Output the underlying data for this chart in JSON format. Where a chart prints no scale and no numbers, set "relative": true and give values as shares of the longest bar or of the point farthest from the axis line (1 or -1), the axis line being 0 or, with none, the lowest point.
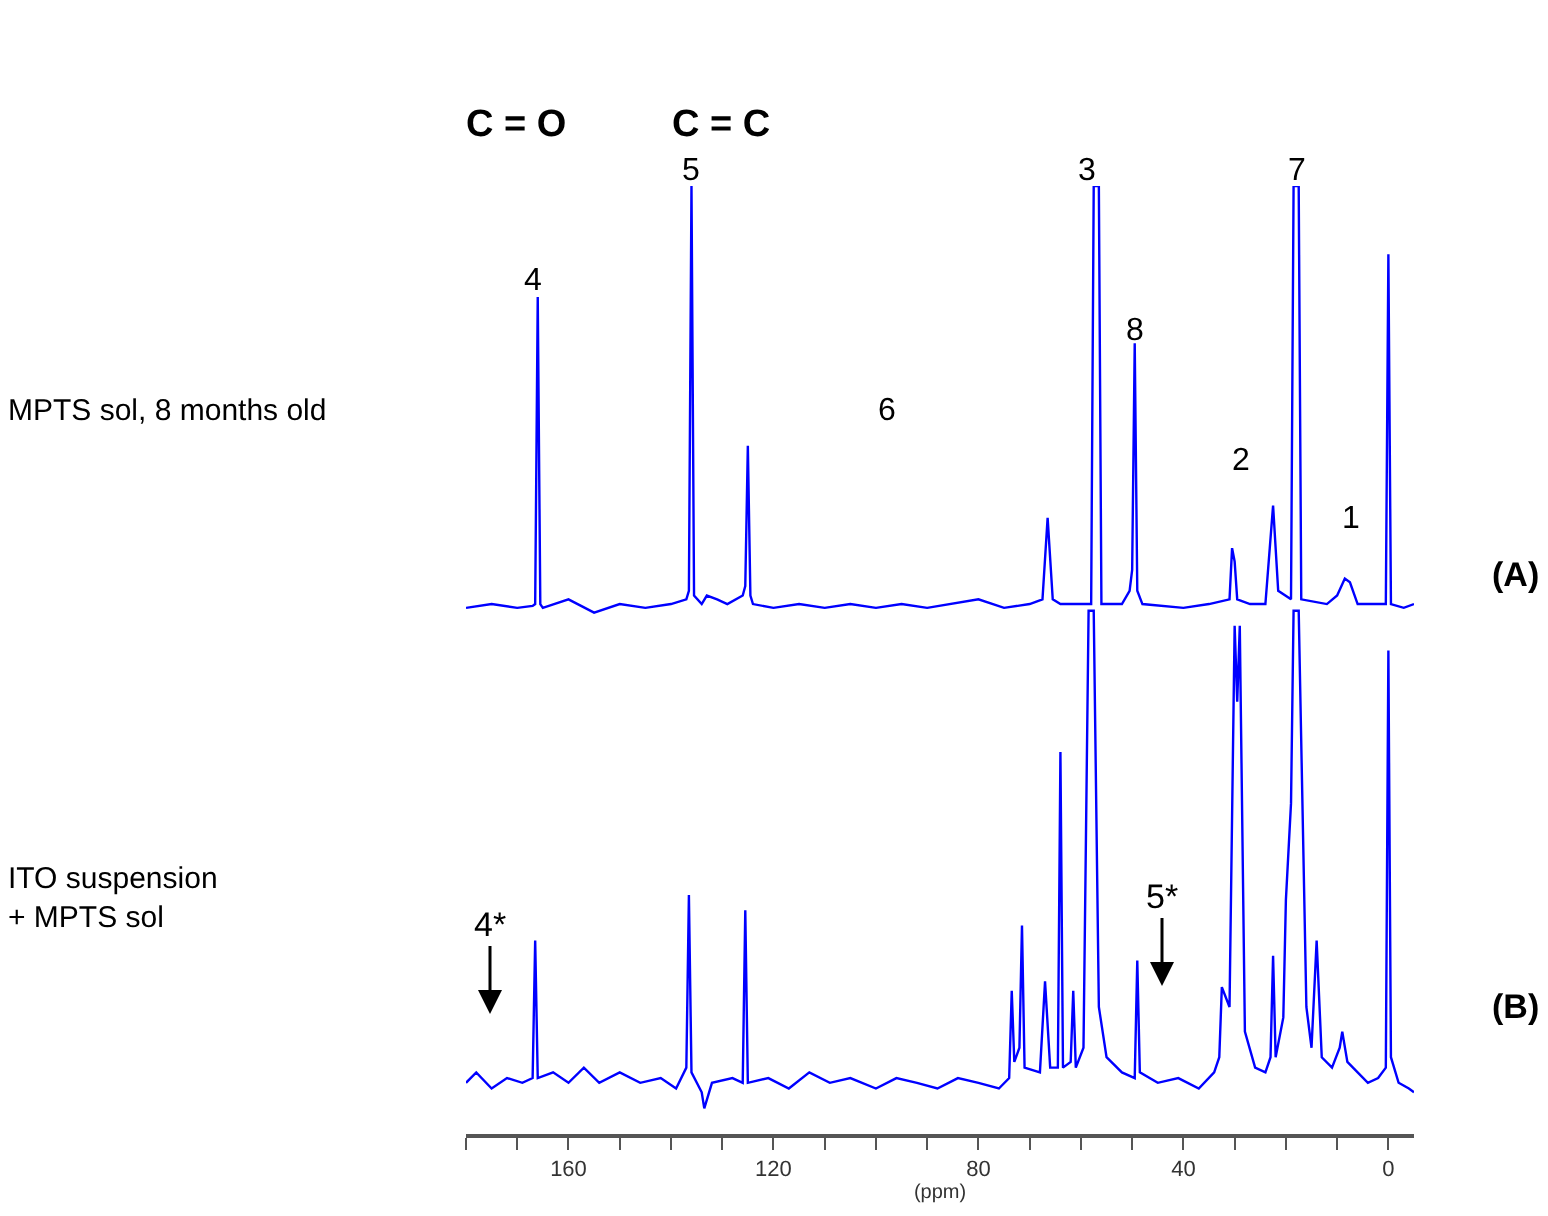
{
  "chart_data": {
    "type": "line",
    "relative": true,
    "xlim": [
      180,
      -5
    ],
    "xlabel": "(ppm)",
    "tick_labels": "x",
    "xticks": [
      {
        "value": 180,
        "label": null
      },
      {
        "value": 170,
        "label": null
      },
      160,
      {
        "value": 150,
        "label": null
      },
      {
        "value": 140,
        "label": null
      },
      {
        "value": 130,
        "label": null
      },
      120,
      {
        "value": 110,
        "label": null
      },
      {
        "value": 100,
        "label": null
      },
      {
        "value": 90,
        "label": null
      },
      80,
      {
        "value": 70,
        "label": null
      },
      {
        "value": 60,
        "label": null
      },
      {
        "value": 50,
        "label": null
      },
      40,
      {
        "value": 30,
        "label": null
      },
      {
        "value": 20,
        "label": null
      },
      {
        "value": 10,
        "label": null
      },
      0
    ],
    "annotations": [
      "C = O",
      "C = C",
      "4",
      "5",
      "6",
      "3",
      "8",
      "2",
      "7",
      "1",
      "MPTS sol, 8 months old",
      "(A)",
      "4*",
      "5*",
      "ITO suspension\n+ MPTS sol",
      "(B)"
    ],
    "series": [
      {
        "color": "#0000ff",
        "x": [
          180,
          175,
          170,
          167,
          166.5,
          166,
          165.5,
          165,
          160,
          155,
          150,
          145,
          140,
          137,
          136.5,
          136,
          135.5,
          134,
          133,
          131,
          129,
          126,
          125.5,
          125,
          124.5,
          124,
          120,
          115,
          110,
          105,
          100,
          95,
          90,
          80,
          75,
          70,
          67.5,
          66.5,
          65.5,
          64,
          58,
          57.5,
          56.5,
          56,
          52,
          50.5,
          50,
          49.5,
          49,
          48,
          40,
          35,
          31,
          30.5,
          30,
          29.5,
          27,
          24,
          22.5,
          21.5,
          19,
          18.5,
          17.5,
          17,
          12,
          10,
          8.5,
          7.5,
          6,
          3,
          0.5,
          0,
          -0.5,
          -3,
          -5
        ],
        "values": [
          0.555,
          0.559,
          0.555,
          0.557,
          0.559,
          0.883,
          0.559,
          0.555,
          0.564,
          0.55,
          0.559,
          0.555,
          0.559,
          0.564,
          0.573,
          1.0,
          0.568,
          0.559,
          0.568,
          0.564,
          0.559,
          0.568,
          0.578,
          0.726,
          0.568,
          0.559,
          0.555,
          0.559,
          0.555,
          0.559,
          0.555,
          0.559,
          0.555,
          0.564,
          0.555,
          0.559,
          0.564,
          0.65,
          0.564,
          0.559,
          0.559,
          1.0,
          1.0,
          0.559,
          0.559,
          0.573,
          0.595,
          0.834,
          0.573,
          0.559,
          0.555,
          0.559,
          0.564,
          0.618,
          0.604,
          0.564,
          0.559,
          0.559,
          0.663,
          0.573,
          0.564,
          1.0,
          1.0,
          0.564,
          0.559,
          0.568,
          0.586,
          0.582,
          0.559,
          0.559,
          0.559,
          0.928,
          0.559,
          0.555,
          0.559
        ]
      },
      {
        "color": "#0000ff",
        "x": [
          180,
          178,
          175,
          172,
          169,
          167,
          166.5,
          166,
          163,
          160,
          157,
          154,
          150,
          146,
          142,
          139,
          137,
          136.5,
          136,
          134,
          133.5,
          132,
          128,
          126,
          125.5,
          125,
          121,
          117,
          113,
          109,
          105,
          100,
          96,
          92,
          88,
          84,
          80,
          76,
          74,
          73.5,
          73,
          72,
          71.5,
          71,
          68,
          67,
          66,
          64.5,
          64,
          63.5,
          62,
          61.5,
          61,
          59.5,
          58.5,
          57.5,
          56.5,
          55,
          52,
          49.5,
          49,
          48.5,
          45,
          41,
          37,
          34,
          33,
          32.5,
          31,
          30,
          29.5,
          29,
          28,
          26,
          24,
          23,
          22.5,
          22,
          20.5,
          20,
          19,
          18.5,
          17.5,
          16,
          15,
          14,
          13,
          11,
          9.5,
          9,
          8,
          6,
          4,
          2,
          0.5,
          0,
          -0.5,
          -2,
          -4,
          -5
        ],
        "values": [
          0.054,
          0.065,
          0.048,
          0.059,
          0.054,
          0.059,
          0.204,
          0.059,
          0.065,
          0.054,
          0.07,
          0.054,
          0.065,
          0.054,
          0.059,
          0.048,
          0.07,
          0.252,
          0.065,
          0.044,
          0.027,
          0.054,
          0.059,
          0.054,
          0.236,
          0.054,
          0.059,
          0.048,
          0.065,
          0.054,
          0.059,
          0.048,
          0.059,
          0.054,
          0.048,
          0.059,
          0.054,
          0.048,
          0.059,
          0.151,
          0.076,
          0.091,
          0.22,
          0.07,
          0.065,
          0.161,
          0.07,
          0.07,
          0.403,
          0.07,
          0.076,
          0.151,
          0.07,
          0.091,
          0.552,
          0.552,
          0.134,
          0.081,
          0.065,
          0.059,
          0.183,
          0.065,
          0.054,
          0.059,
          0.048,
          0.065,
          0.081,
          0.155,
          0.134,
          0.536,
          0.456,
          0.536,
          0.108,
          0.07,
          0.065,
          0.081,
          0.188,
          0.081,
          0.123,
          0.247,
          0.349,
          0.552,
          0.552,
          0.134,
          0.091,
          0.204,
          0.081,
          0.07,
          0.091,
          0.108,
          0.076,
          0.065,
          0.054,
          0.059,
          0.07,
          0.51,
          0.081,
          0.054,
          0.048,
          0.044
        ]
      }
    ]
  }
}
